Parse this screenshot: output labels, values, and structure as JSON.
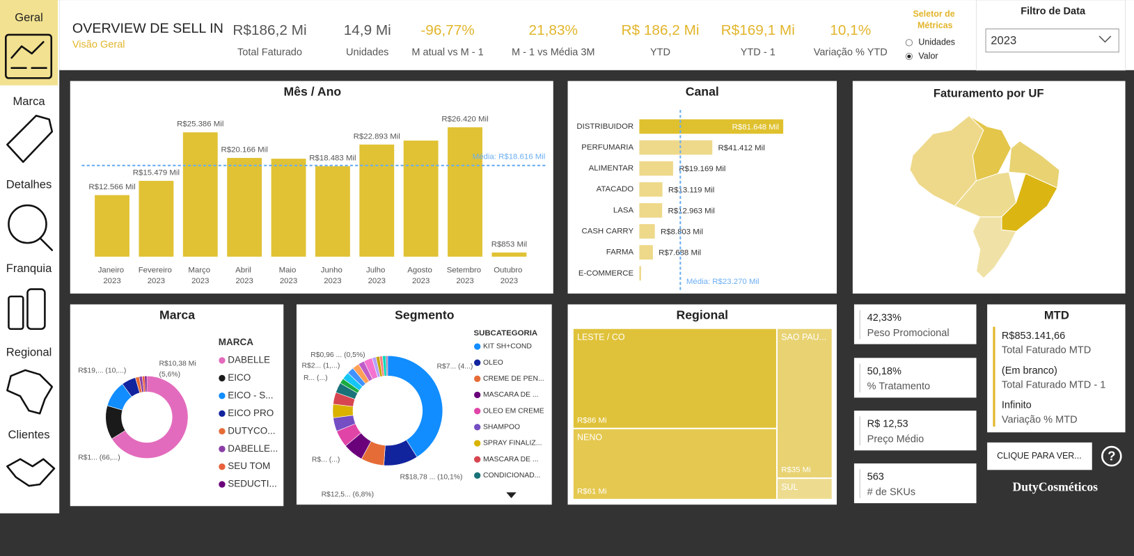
{
  "nav": {
    "items": [
      "Geral",
      "Marca",
      "Detalhes",
      "Franquia",
      "Regional",
      "Clientes"
    ]
  },
  "header": {
    "title": "OVERVIEW DE SELL IN",
    "subtitle": "Visão Geral"
  },
  "kpis": [
    {
      "value": "R$186,2 Mi",
      "label": "Total Faturado",
      "color": "#555555"
    },
    {
      "value": "14,9 Mi",
      "label": "Unidades",
      "color": "#555555"
    },
    {
      "value": "-96,77%",
      "label": "M atual vs M - 1",
      "color": "#e2b52b"
    },
    {
      "value": "21,83%",
      "label": "M - 1 vs Média 3M",
      "color": "#e2b52b"
    },
    {
      "value": "R$ 186,2 Mi",
      "label": "YTD",
      "color": "#e2b52b"
    },
    {
      "value": "R$169,1 Mi",
      "label": "YTD - 1",
      "color": "#e2b52b"
    },
    {
      "value": "10,1%",
      "label": "Variação % YTD",
      "color": "#e2b52b"
    }
  ],
  "metric_selector": {
    "title": "Seletor de Métricas",
    "options": [
      "Unidades",
      "Valor"
    ],
    "selected_index": 1
  },
  "date_filter": {
    "title": "Filtro de Data",
    "value": "2023"
  },
  "chart_data": [
    {
      "type": "bar",
      "title": "Mês / Ano",
      "categories": [
        "Janeiro 2023",
        "Fevereiro 2023",
        "Março 2023",
        "Abril 2023",
        "Maio 2023",
        "Junho 2023",
        "Julho 2023",
        "Agosto 2023",
        "Setembro 2023",
        "Outubro 2023"
      ],
      "values": [
        12566,
        15479,
        25386,
        20166,
        20000,
        18483,
        22893,
        23700,
        26420,
        853
      ],
      "value_labels": [
        "R$12.566 Mil",
        "R$15.479 Mil",
        "R$25.386 Mil",
        "R$20.166 Mil",
        null,
        "R$18.483 Mil",
        "R$22.893 Mil",
        null,
        "R$26.420 Mil",
        "R$853 Mil"
      ],
      "color": "#e0c234",
      "mean": 18616,
      "mean_label": "Média: R$18.616 Mil",
      "mean_color": "#6aaef2"
    },
    {
      "type": "hbar",
      "title": "Canal",
      "categories": [
        "DISTRIBUIDOR",
        "PERFUMARIA",
        "ALIMENTAR",
        "ATACADO",
        "LASA",
        "CASH CARRY",
        "FARMA",
        "E-COMMERCE"
      ],
      "values": [
        81648,
        41412,
        19169,
        13119,
        12963,
        8803,
        7688,
        1000
      ],
      "value_labels": [
        "R$81.648 Mil",
        "R$41.412 Mil",
        "R$19.169 Mil",
        "R$13.119 Mil",
        "R$12.963 Mil",
        "R$8.803 Mil",
        "R$7.688 Mil",
        null
      ],
      "colors": [
        "#dfc12f",
        "#eed98a",
        "#eed98a",
        "#eed98a",
        "#eed98a",
        "#eed98a",
        "#eed98a",
        "#eed98a"
      ],
      "mean": 23270,
      "mean_label": "Média: R$23.270 Mil",
      "mean_color": "#6aaef2"
    },
    {
      "type": "donut",
      "title": "Marca",
      "legend_title": "MARCA",
      "categories": [
        "DABELLE",
        "EICO",
        "EICO - S...",
        "EICO PRO",
        "DUTYCO...",
        "DABELLE...",
        "SEU TOM",
        "SEDUCTI..."
      ],
      "values": [
        66.2,
        13.3,
        10.4,
        5.6,
        1.5,
        1.2,
        1.0,
        0.8
      ],
      "value_labels": [
        "R$1... (66,...)",
        null,
        "R$19,... (10,...)",
        "R$10,38 Mi (5,6%)",
        null,
        null,
        null,
        null
      ],
      "colors": [
        "#e36bbd",
        "#1a1a1a",
        "#118dff",
        "#12239e",
        "#e66c37",
        "#8a3ea6",
        "#e8603c",
        "#6b007b"
      ]
    },
    {
      "type": "donut",
      "title": "Segmento",
      "legend_title": "SUBCATEGORIA",
      "categories": [
        "KIT SH+COND",
        "OLEO",
        "CREME DE PEN...",
        "MASCARA DE ...",
        "OLEO EM CREME",
        "SHAMPOO",
        "SPRAY FINALIZ...",
        "MASCARA DE ...",
        "CONDICIONAD...",
        null,
        null,
        null,
        null,
        null,
        null,
        null,
        null,
        null,
        null,
        null
      ],
      "values": [
        41,
        10.1,
        6.8,
        6,
        5,
        4,
        4,
        3.5,
        3,
        1.5,
        2.2,
        2.0,
        2.0,
        1.8,
        2.5,
        1.2,
        1.0,
        0.9,
        1.0,
        0.5
      ],
      "value_labels": [
        "R$7... (4...)",
        "R$18,78 ... (10,1%)",
        "R$12,5... (6,8%)",
        "R$... (...)",
        null,
        null,
        null,
        null,
        "R... (...)",
        "R$2... (1,...)",
        null,
        null,
        null,
        null,
        null,
        null,
        null,
        null,
        null,
        "R$0,96 ... (0,5%)"
      ],
      "colors": [
        "#118dff",
        "#12239e",
        "#e66c37",
        "#6b007b",
        "#e044a7",
        "#744ec2",
        "#d9b300",
        "#d64550",
        "#197278",
        "#1aab40",
        "#15c6f4",
        "#4092ff",
        "#ffa058",
        "#be5dc9",
        "#f472d0",
        "#b5a1ff",
        "#c4a200",
        "#ff8080",
        "#00dbbc",
        "#a66999"
      ]
    },
    {
      "type": "treemap",
      "title": "Regional",
      "categories": [
        "LESTE / CO",
        "NENO",
        "SAO PAU...",
        "SUL"
      ],
      "values": [
        86,
        61,
        35,
        5
      ],
      "value_labels": [
        "R$86 Mi",
        "R$61 Mi",
        "R$35 Mi",
        null
      ],
      "colors": [
        "#e0c23a",
        "#e5c84f",
        "#e8d272",
        "#eddc90"
      ]
    }
  ],
  "uf_map": {
    "title": "Faturamento por UF"
  },
  "cards": [
    {
      "value": "42,33%",
      "label": "Peso Promocional"
    },
    {
      "value": "50,18%",
      "label": "% Tratamento"
    },
    {
      "value": "R$ 12,53",
      "label": "Preço Médio"
    },
    {
      "value": "563",
      "label": "# de SKUs"
    }
  ],
  "mtd": {
    "title": "MTD",
    "rows": [
      {
        "value": "R$853.141,66",
        "label": "Total Faturado MTD"
      },
      {
        "value": "(Em branco)",
        "label": "Total Faturado MTD - 1"
      },
      {
        "value": "Infinito",
        "label": "Variação % MTD"
      }
    ]
  },
  "button": "CLIQUE PARA VER...",
  "help": "?",
  "brand": "DutyCosméticos"
}
